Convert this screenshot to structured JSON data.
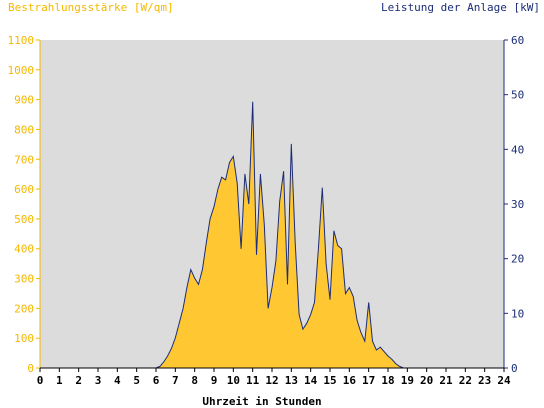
{
  "chart_data": {
    "type": "area",
    "left_axis_title": "Bestrahlungsstärke [W/qm]",
    "right_axis_title": "Leistung der Anlage [kW]",
    "xlabel": "Uhrzeit in Stunden",
    "xlim": [
      0,
      24
    ],
    "ylim_left": [
      0,
      1100
    ],
    "ylim_right": [
      0,
      60
    ],
    "x_ticks": [
      0,
      1,
      2,
      3,
      4,
      5,
      6,
      7,
      8,
      9,
      10,
      11,
      12,
      13,
      14,
      15,
      16,
      17,
      18,
      19,
      20,
      21,
      22,
      23,
      24
    ],
    "y_ticks_left": [
      0,
      100,
      200,
      300,
      400,
      500,
      600,
      700,
      800,
      900,
      1000,
      1100
    ],
    "y_ticks_right": [
      0,
      10,
      20,
      30,
      40,
      50,
      60
    ],
    "grid": false,
    "colors": {
      "plot_background": "#dcdcdc",
      "irradiance_fill": "#ffc832",
      "power_line": "#1c2d78",
      "left_axis": "#f5b800",
      "right_axis": "#1c2d78"
    },
    "series": [
      {
        "axis": "left",
        "style": "filled-area",
        "x": [
          0,
          6.0,
          6.2,
          6.4,
          6.6,
          6.8,
          7.0,
          7.2,
          7.4,
          7.6,
          7.8,
          8.0,
          8.2,
          8.4,
          8.6,
          8.8,
          9.0,
          9.2,
          9.4,
          9.6,
          9.8,
          10.0,
          10.2,
          10.4,
          10.6,
          10.8,
          11.0,
          11.2,
          11.4,
          11.6,
          11.8,
          12.0,
          12.2,
          12.4,
          12.6,
          12.8,
          13.0,
          13.2,
          13.4,
          13.6,
          13.8,
          14.0,
          14.2,
          14.4,
          14.6,
          14.8,
          15.0,
          15.2,
          15.4,
          15.6,
          15.8,
          16.0,
          16.2,
          16.4,
          16.6,
          16.8,
          17.0,
          17.2,
          17.4,
          17.6,
          17.8,
          18.0,
          18.2,
          18.4,
          18.6,
          18.8,
          19.0,
          19.2,
          24
        ],
        "y": [
          0,
          0,
          5,
          20,
          40,
          65,
          100,
          150,
          200,
          270,
          330,
          300,
          280,
          330,
          420,
          500,
          540,
          600,
          640,
          630,
          690,
          710,
          620,
          400,
          650,
          550,
          830,
          380,
          650,
          480,
          200,
          270,
          360,
          560,
          660,
          280,
          750,
          420,
          180,
          130,
          150,
          180,
          220,
          400,
          560,
          350,
          230,
          460,
          410,
          400,
          250,
          270,
          240,
          160,
          120,
          90,
          200,
          90,
          60,
          70,
          55,
          40,
          30,
          15,
          5,
          0,
          0,
          0,
          0
        ]
      },
      {
        "axis": "right",
        "style": "line",
        "x": [
          0,
          6.0,
          6.2,
          6.4,
          6.6,
          6.8,
          7.0,
          7.2,
          7.4,
          7.6,
          7.8,
          8.0,
          8.2,
          8.4,
          8.6,
          8.8,
          9.0,
          9.2,
          9.4,
          9.6,
          9.8,
          10.0,
          10.2,
          10.4,
          10.6,
          10.8,
          11.0,
          11.2,
          11.4,
          11.6,
          11.8,
          12.0,
          12.2,
          12.4,
          12.6,
          12.8,
          13.0,
          13.2,
          13.4,
          13.6,
          13.8,
          14.0,
          14.2,
          14.4,
          14.6,
          14.8,
          15.0,
          15.2,
          15.4,
          15.6,
          15.8,
          16.0,
          16.2,
          16.4,
          16.6,
          16.8,
          17.0,
          17.2,
          17.4,
          17.6,
          17.8,
          18.0,
          18.2,
          18.4,
          18.6,
          18.8,
          19.0,
          19.2,
          24
        ],
        "y": [
          0,
          0,
          0.3,
          1.1,
          2.2,
          3.6,
          5.5,
          8.2,
          10.9,
          14.7,
          18.0,
          16.4,
          15.3,
          18.0,
          22.9,
          27.3,
          29.5,
          32.7,
          34.9,
          34.4,
          37.6,
          38.7,
          33.8,
          21.8,
          35.5,
          30.0,
          48.7,
          20.7,
          35.5,
          26.2,
          10.9,
          14.7,
          19.6,
          30.5,
          36.0,
          15.3,
          41.0,
          22.9,
          9.8,
          7.1,
          8.2,
          9.8,
          12.0,
          21.8,
          33.0,
          19.1,
          12.5,
          25.1,
          22.4,
          21.8,
          13.6,
          14.7,
          13.1,
          8.7,
          6.5,
          4.9,
          12.0,
          4.9,
          3.3,
          3.8,
          3.0,
          2.2,
          1.6,
          0.8,
          0.3,
          0,
          0,
          0,
          0
        ]
      }
    ]
  }
}
